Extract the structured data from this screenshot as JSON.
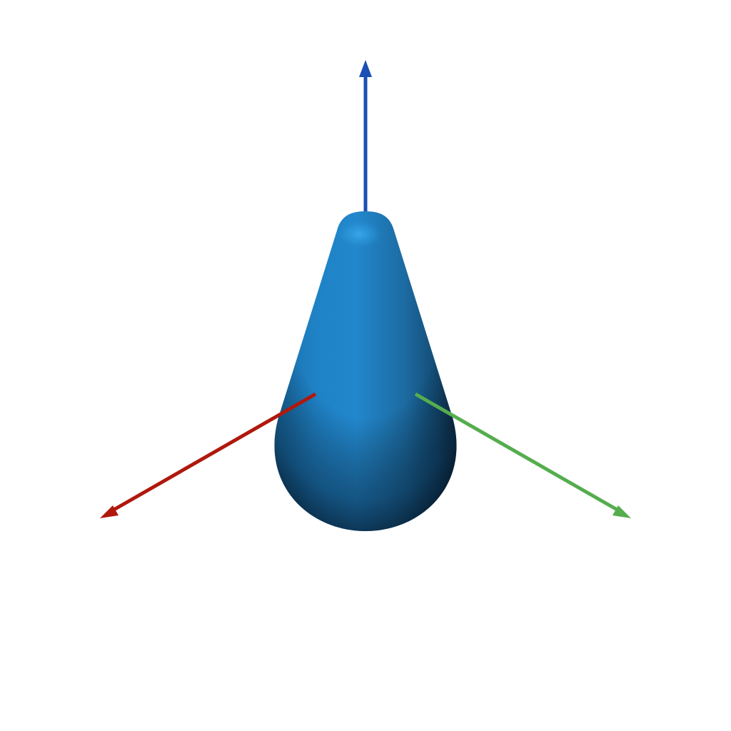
{
  "scene": {
    "type": "3d-viewport",
    "background_color": "#ffffff",
    "object": {
      "shape": "teardrop-capsule",
      "color": "#1f82c6",
      "highlight_color": "#3aa6ea",
      "shadow_color": "#0d2d45"
    },
    "axes": [
      {
        "id": "x-axis",
        "color": "#b0180d",
        "direction": "front-left"
      },
      {
        "id": "y-axis",
        "color": "#55ad4e",
        "direction": "front-right"
      },
      {
        "id": "z-axis",
        "color": "#1a4fb3",
        "direction": "up"
      }
    ]
  }
}
